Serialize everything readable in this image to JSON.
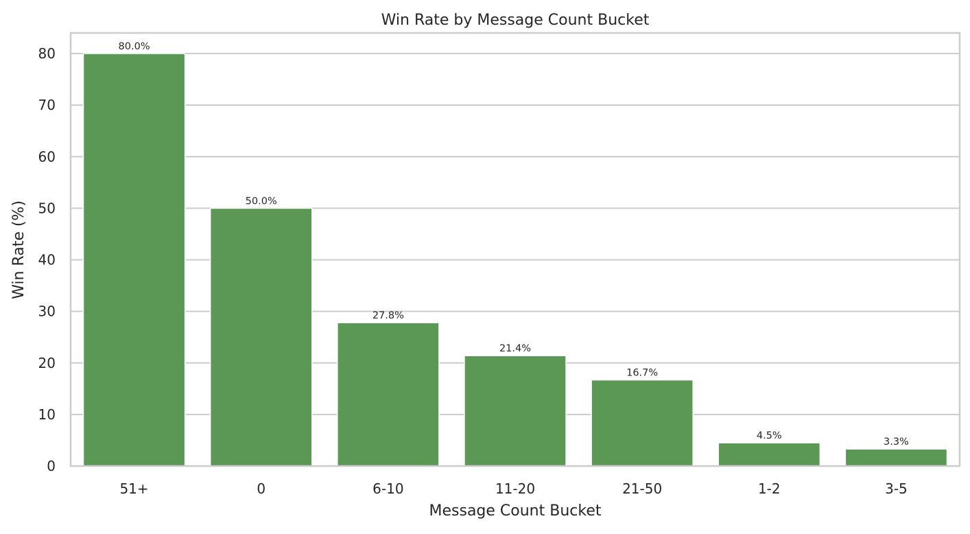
{
  "chart_data": {
    "type": "bar",
    "title": "Win Rate by Message Count Bucket",
    "xlabel": "Message Count Bucket",
    "ylabel": "Win Rate (%)",
    "categories": [
      "51+",
      "0",
      "6-10",
      "11-20",
      "21-50",
      "1-2",
      "3-5"
    ],
    "values": [
      80.0,
      50.0,
      27.8,
      21.4,
      16.7,
      4.5,
      3.3
    ],
    "data_labels": [
      "80.0%",
      "50.0%",
      "27.8%",
      "21.4%",
      "16.7%",
      "4.5%",
      "3.3%"
    ],
    "ylim": [
      0,
      84
    ],
    "yticks": [
      0,
      10,
      20,
      30,
      40,
      50,
      60,
      70,
      80
    ],
    "grid": "horizontal",
    "legend": "none",
    "bar_color": "#5b9856",
    "grid_color": "#cccccc",
    "frame_color": "#cccccc"
  }
}
